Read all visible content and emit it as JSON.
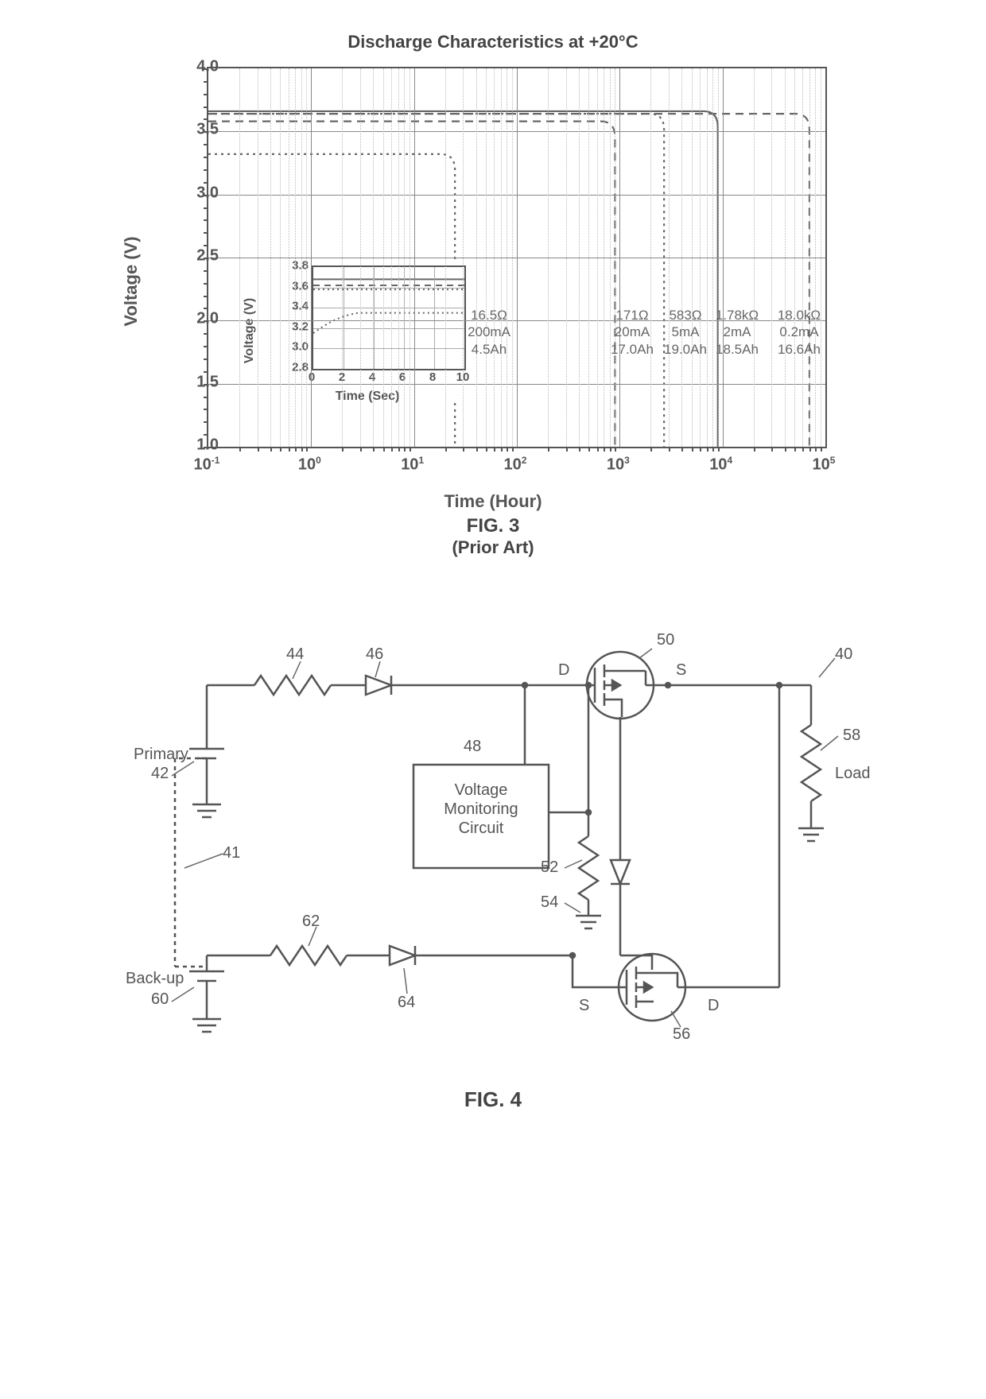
{
  "fig3": {
    "title": "Discharge Characteristics at +20°C",
    "caption": "FIG. 3",
    "subcaption": "(Prior Art)",
    "ylabel": "Voltage (V)",
    "xlabel": "Time (Hour)",
    "type": "line",
    "xscale": "log",
    "xlim": [
      0.1,
      100000
    ],
    "ylim": [
      1.0,
      4.0
    ],
    "yticks": [
      1.0,
      1.5,
      2.0,
      2.5,
      3.0,
      3.5,
      4.0
    ],
    "xticks_pow": [
      -1,
      0,
      1,
      2,
      3,
      4,
      5
    ],
    "grid_color": "#888888",
    "background_color": "#ffffff",
    "series": [
      {
        "name": "16.5Ω 200mA 4.5Ah",
        "dash": "dot",
        "plateau_v": 3.32,
        "drop_hours": 25,
        "label": "16.5Ω\n200mA\n4.5Ah",
        "label_x": 310
      },
      {
        "name": "171Ω 20mA 17.0Ah",
        "dash": "dash",
        "plateau_v": 3.58,
        "drop_hours": 900,
        "label": "171Ω\n20mA\n17.0Ah",
        "label_x": 490
      },
      {
        "name": "583Ω 5mA 19.0Ah",
        "dash": "dot",
        "plateau_v": 3.64,
        "drop_hours": 2700,
        "label": "583Ω\n5mA\n19.0Ah",
        "label_x": 557
      },
      {
        "name": "1.78kΩ 2mA 18.5Ah",
        "dash": "solid",
        "plateau_v": 3.66,
        "drop_hours": 9000,
        "label": "1.78kΩ\n2mA\n18.5Ah",
        "label_x": 622
      },
      {
        "name": "18.0kΩ 0.2mA 16.6Ah",
        "dash": "dash",
        "plateau_v": 3.64,
        "drop_hours": 70000,
        "label": "18.0kΩ\n0.2mA\n16.6Ah",
        "label_x": 700
      }
    ],
    "inset": {
      "xlabel": "Time (Sec)",
      "ylabel": "Voltage (V)",
      "xlim": [
        0,
        10
      ],
      "ylim": [
        2.8,
        3.8
      ],
      "xticks": [
        0,
        2,
        4,
        6,
        8,
        10
      ],
      "yticks": [
        2.8,
        3.0,
        3.2,
        3.4,
        3.6,
        3.8
      ],
      "series": [
        {
          "dash": "solid",
          "v": 3.68
        },
        {
          "dash": "dash",
          "v": 3.62
        },
        {
          "dash": "dot",
          "v": 3.58
        },
        {
          "dash": "rise",
          "v": 3.35
        }
      ]
    }
  },
  "fig4": {
    "caption": "FIG. 4",
    "type": "circuit-schematic",
    "labels": {
      "primary": "Primary",
      "backup": "Back-up",
      "load": "Load",
      "vmc": "Voltage\nMonitoring\nCircuit",
      "D": "D",
      "S": "S"
    },
    "refs": {
      "40": "40",
      "41": "41",
      "42": "42",
      "44": "44",
      "46": "46",
      "48": "48",
      "50": "50",
      "52": "52",
      "54": "54",
      "56": "56",
      "58": "58",
      "60": "60",
      "62": "62",
      "64": "64"
    },
    "stroke": "#555555",
    "stroke_width": 2
  }
}
